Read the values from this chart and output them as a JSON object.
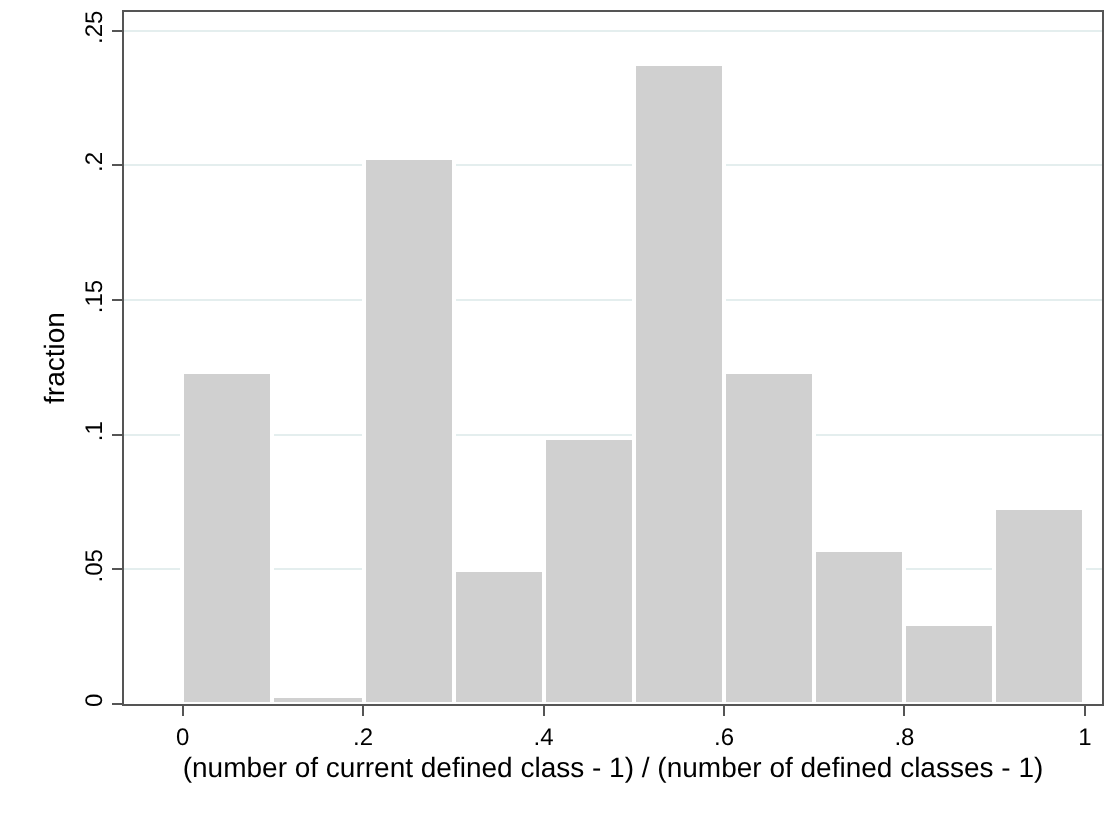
{
  "chart_data": {
    "type": "histogram",
    "xlabel": "(number of current defined class - 1) / (number of defined classes - 1)",
    "ylabel": "fraction",
    "bins": [
      0,
      0.1,
      0.2,
      0.3,
      0.4,
      0.5,
      0.6,
      0.7,
      0.8,
      0.9,
      1
    ],
    "values": [
      0.123,
      0.003,
      0.203,
      0.05,
      0.099,
      0.238,
      0.123,
      0.057,
      0.03,
      0.073
    ],
    "color": "#d0d0d0",
    "xlim": [
      -0.065,
      1.019
    ],
    "ylim": [
      0,
      0.257
    ],
    "xticks": [
      0,
      {
        "value": 0.2,
        "label": ".2"
      },
      {
        "value": 0.4,
        "label": ".4"
      },
      {
        "value": 0.6,
        "label": ".6"
      },
      {
        "value": 0.8,
        "label": ".8"
      },
      1
    ],
    "yticks": [
      0,
      {
        "value": 0.05,
        "label": ".05"
      },
      {
        "value": 0.1,
        "label": ".1"
      },
      {
        "value": 0.15,
        "label": ".15"
      },
      {
        "value": 0.2,
        "label": ".2"
      },
      {
        "value": 0.25,
        "label": ".25"
      }
    ],
    "grid": "y"
  }
}
